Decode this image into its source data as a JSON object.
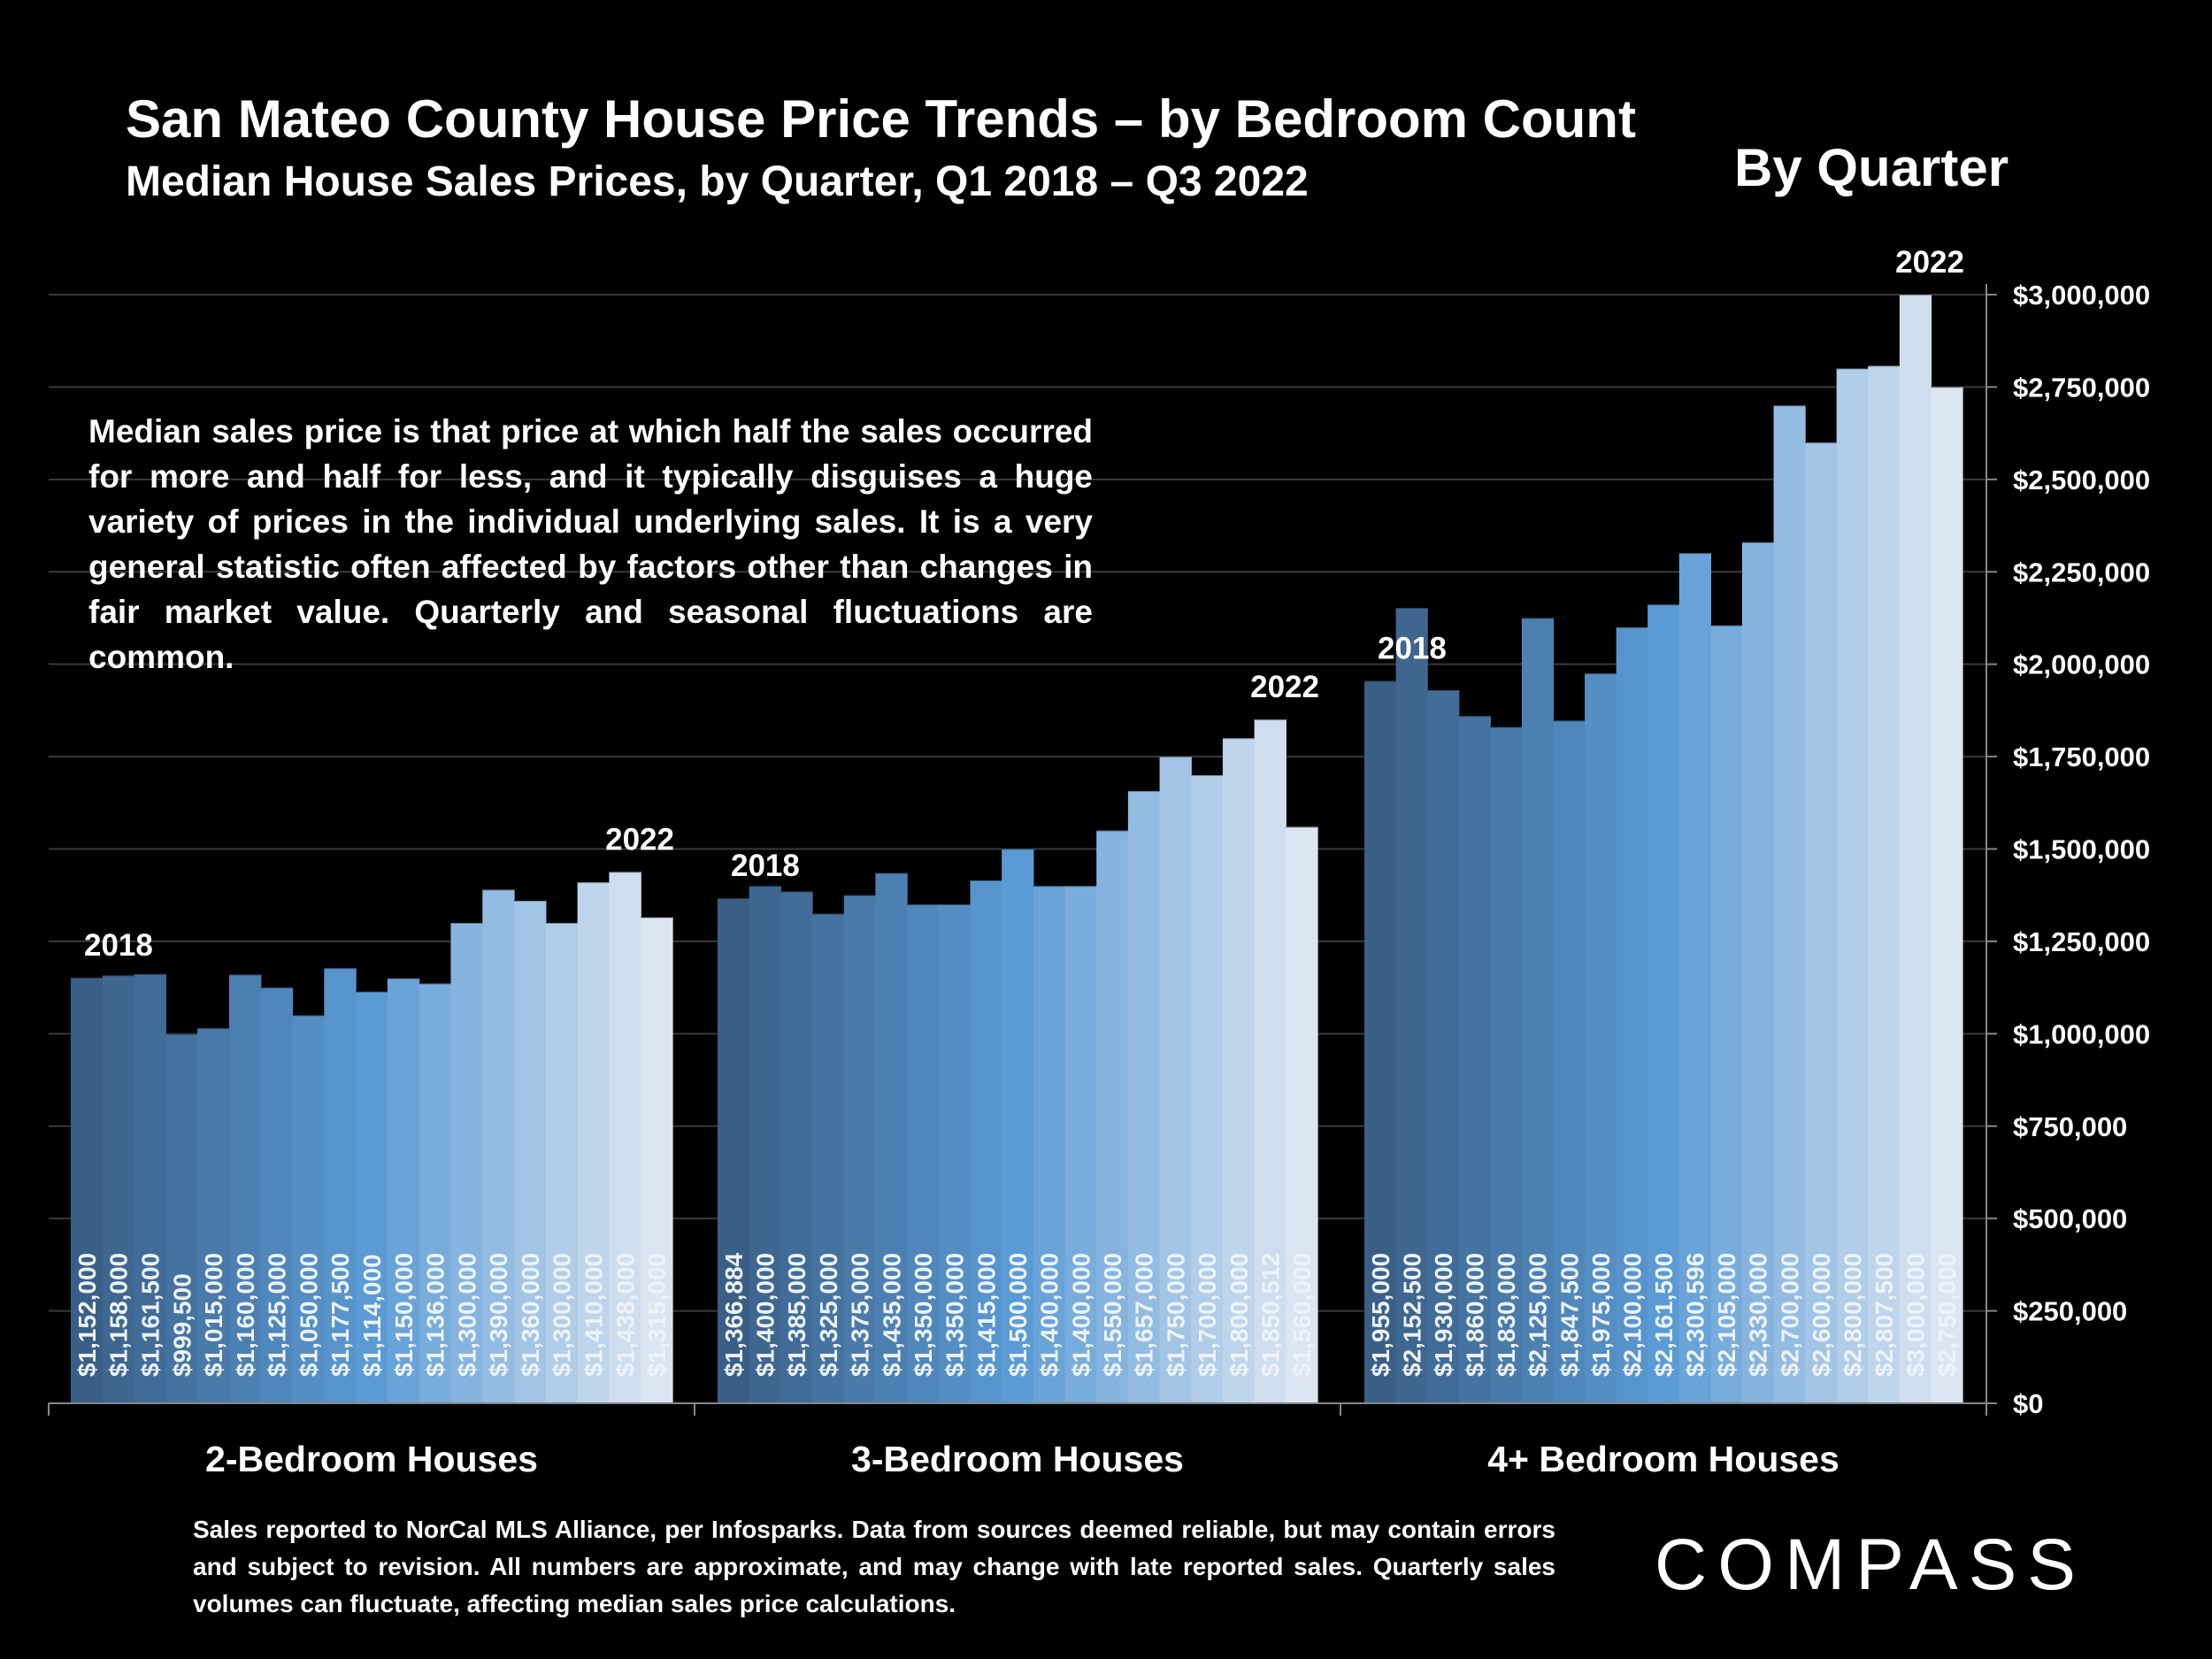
{
  "header": {
    "title": "San Mateo County House Price Trends – by Bedroom Count",
    "subtitle": "Median House Sales Prices, by Quarter, Q1 2018 – Q3 2022",
    "corner_label": "By Quarter"
  },
  "note": "Median sales price is that price at which half the sales occurred for more and half for less, and it typically disguises a huge variety of prices in the individual underlying sales. It is a very general statistic often affected by factors other than changes in fair market value. Quarterly and seasonal fluctuations are common.",
  "footer": "Sales reported to NorCal MLS Alliance, per Infosparks. Data from sources deemed reliable, but may contain errors and subject to revision. All numbers are approximate, and may change with late reported sales. Quarterly sales volumes can fluctuate, affecting median sales price calculations.",
  "logo_text": "COMPASS",
  "colors": {
    "background": "#000000",
    "bar_dark": "#3a5f86",
    "bar_mid": "#5b9bd5",
    "bar_light": "#dce6f2"
  },
  "chart_data": {
    "type": "bar",
    "title": "San Mateo County House Price Trends – by Bedroom Count",
    "ylabel": "",
    "ylim": [
      0,
      3000000
    ],
    "yticks": [
      "$0",
      "$250,000",
      "$500,000",
      "$750,000",
      "$1,000,000",
      "$1,250,000",
      "$1,500,000",
      "$1,750,000",
      "$2,000,000",
      "$2,250,000",
      "$2,500,000",
      "$2,750,000",
      "$3,000,000"
    ],
    "ytick_values": [
      0,
      250000,
      500000,
      750000,
      1000000,
      1250000,
      1500000,
      1750000,
      2000000,
      2250000,
      2500000,
      2750000,
      3000000
    ],
    "grid": true,
    "groups": [
      {
        "name": "2-Bedroom Houses",
        "start_label": "2018",
        "end_label": "2022",
        "values": [
          1152000,
          1158000,
          1161500,
          999500,
          1015000,
          1160000,
          1125000,
          1050000,
          1177500,
          1114000,
          1150000,
          1136000,
          1300000,
          1390000,
          1360000,
          1300000,
          1410000,
          1438000,
          1315000
        ],
        "labels": [
          "$1,152,000",
          "$1,158,000",
          "$1,161,500",
          "$999,500",
          "$1,015,000",
          "$1,160,000",
          "$1,125,000",
          "$1,050,000",
          "$1,177,500",
          "$1,114,000",
          "$1,150,000",
          "$1,136,000",
          "$1,300,000",
          "$1,390,000",
          "$1,360,000",
          "$1,300,000",
          "$1,410,000",
          "$1,438,000",
          "$1,315,000"
        ]
      },
      {
        "name": "3-Bedroom Houses",
        "start_label": "2018",
        "end_label": "2022",
        "values": [
          1366884,
          1400000,
          1385000,
          1325000,
          1375000,
          1435000,
          1350000,
          1350000,
          1415000,
          1500000,
          1400000,
          1400000,
          1550000,
          1657000,
          1750000,
          1700000,
          1800000,
          1850512,
          1560000
        ],
        "labels": [
          "$1,366,884",
          "$1,400,000",
          "$1,385,000",
          "$1,325,000",
          "$1,375,000",
          "$1,435,000",
          "$1,350,000",
          "$1,350,000",
          "$1,415,000",
          "$1,500,000",
          "$1,400,000",
          "$1,400,000",
          "$1,550,000",
          "$1,657,000",
          "$1,750,000",
          "$1,700,000",
          "$1,800,000",
          "$1,850,512",
          "$1,560,000"
        ]
      },
      {
        "name": "4+ Bedroom Houses",
        "start_label": "2018",
        "end_label": "2022",
        "values": [
          1955000,
          2152500,
          1930000,
          1860000,
          1830000,
          2125000,
          1847500,
          1975000,
          2100000,
          2161500,
          2300596,
          2105000,
          2330000,
          2700000,
          2600000,
          2800000,
          2807500,
          3000000,
          2750000
        ],
        "labels": [
          "$1,955,000",
          "$2,152,500",
          "$1,930,000",
          "$1,860,000",
          "$1,830,000",
          "$2,125,000",
          "$1,847,500",
          "$1,975,000",
          "$2,100,000",
          "$2,161,500",
          "$2,300,596",
          "$2,105,000",
          "$2,330,000",
          "$2,700,000",
          "$2,600,000",
          "$2,800,000",
          "$2,807,500",
          "$3,000,000",
          "$2,750,000"
        ]
      }
    ]
  }
}
